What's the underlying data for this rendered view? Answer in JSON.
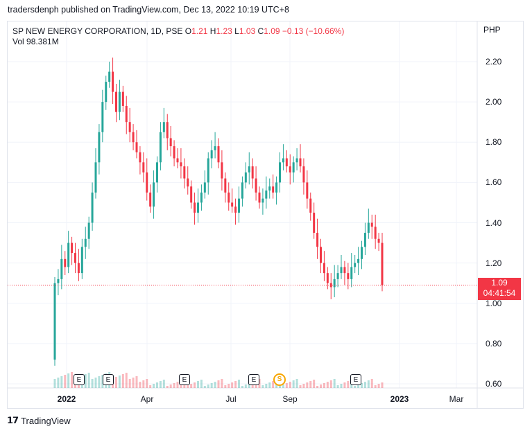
{
  "header": {
    "published": "tradersdenph published on TradingView.com, Dec 13, 2022 10:19 UTC+8"
  },
  "legend": {
    "symbol": "SP NEW ENERGY CORPORATION, 1D, PSE",
    "o_label": "O",
    "o_val": "1.21",
    "h_label": "H",
    "h_val": "1.23",
    "l_label": "L",
    "l_val": "1.03",
    "c_label": "C",
    "c_val": "1.09",
    "change": "−0.13 (−10.66%)",
    "vol_label": "Vol",
    "vol_val": "98.381M"
  },
  "currency": "PHP",
  "last_price": {
    "value": "1.09",
    "countdown": "04:41:54"
  },
  "badges": {
    "earnings": "E",
    "split": "S"
  },
  "footer": {
    "brand": "TradingView"
  },
  "colors": {
    "up": "#26a69a",
    "down": "#f23645",
    "grid": "#f0f3fa",
    "price_line": "#f23645"
  },
  "chart_data": {
    "type": "candlestick",
    "y_ticks": [
      "2.20",
      "2.00",
      "1.80",
      "1.60",
      "1.40",
      "1.20",
      "1.00",
      "0.80",
      "0.60"
    ],
    "x_ticks": [
      {
        "label": "2022",
        "bold": true
      },
      {
        "label": "Apr",
        "bold": false
      },
      {
        "label": "Jul",
        "bold": false
      },
      {
        "label": "Sep",
        "bold": false
      },
      {
        "label": "2023",
        "bold": true
      },
      {
        "label": "Mar",
        "bold": false
      }
    ],
    "ylim": [
      0.55,
      2.35
    ],
    "close_series": [
      1.1,
      1.12,
      1.22,
      1.18,
      1.3,
      1.25,
      1.2,
      1.15,
      1.28,
      1.32,
      1.4,
      1.55,
      1.7,
      1.85,
      2.0,
      2.1,
      2.15,
      2.05,
      1.95,
      2.05,
      1.98,
      1.9,
      1.85,
      1.8,
      1.75,
      1.7,
      1.65,
      1.55,
      1.48,
      1.6,
      1.7,
      1.85,
      1.9,
      1.82,
      1.78,
      1.72,
      1.7,
      1.68,
      1.62,
      1.58,
      1.5,
      1.45,
      1.5,
      1.55,
      1.6,
      1.72,
      1.76,
      1.78,
      1.7,
      1.62,
      1.55,
      1.5,
      1.48,
      1.45,
      1.52,
      1.6,
      1.65,
      1.68,
      1.62,
      1.55,
      1.5,
      1.52,
      1.56,
      1.58,
      1.55,
      1.6,
      1.7,
      1.72,
      1.68,
      1.65,
      1.7,
      1.72,
      1.68,
      1.6,
      1.52,
      1.45,
      1.35,
      1.28,
      1.2,
      1.15,
      1.1,
      1.08,
      1.12,
      1.15,
      1.18,
      1.15,
      1.12,
      1.18,
      1.2,
      1.22,
      1.28,
      1.35,
      1.4,
      1.38,
      1.32,
      1.3,
      1.09
    ],
    "last": 1.09
  }
}
